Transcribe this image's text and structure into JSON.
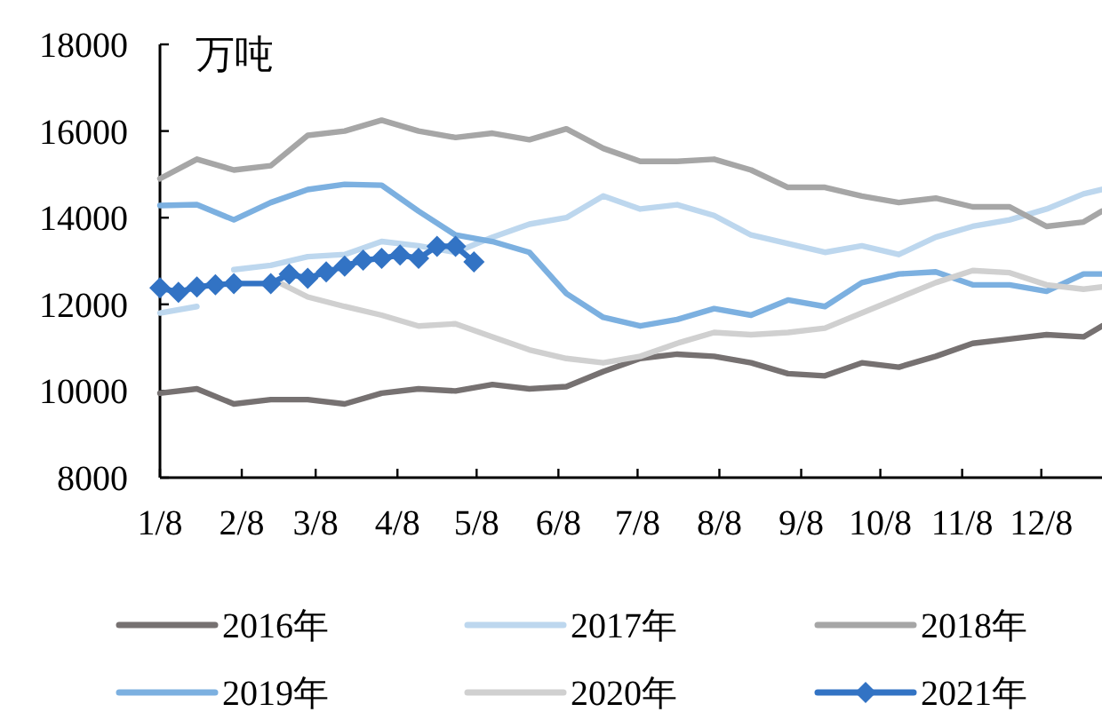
{
  "chart_data": {
    "type": "line",
    "ylabel": "万吨",
    "x": [
      "--01-08",
      "--01-22",
      "--02-05",
      "--02-19",
      "--03-05",
      "--03-19",
      "--04-02",
      "--04-16",
      "--04-30",
      "--05-14",
      "--05-28",
      "--06-11",
      "--06-25",
      "--07-09",
      "--07-23",
      "--08-06",
      "--08-20",
      "--09-03",
      "--09-17",
      "--10-01",
      "--10-15",
      "--10-29",
      "--11-12",
      "--11-26",
      "--12-10",
      "--12-24",
      "--12-31"
    ],
    "xlim": [
      "--01-08",
      "--12-31"
    ],
    "xticks": [
      {
        "value": "--01-08",
        "label": "1/8"
      },
      {
        "value": "--02-08",
        "label": "2/8"
      },
      {
        "value": "--03-08",
        "label": "3/8"
      },
      {
        "value": "--04-08",
        "label": "4/8"
      },
      {
        "value": "--05-08",
        "label": "5/8"
      },
      {
        "value": "--06-08",
        "label": "6/8"
      },
      {
        "value": "--07-08",
        "label": "7/8"
      },
      {
        "value": "--08-08",
        "label": "8/8"
      },
      {
        "value": "--09-08",
        "label": "9/8"
      },
      {
        "value": "--10-08",
        "label": "10/8"
      },
      {
        "value": "--11-08",
        "label": "11/8"
      },
      {
        "value": "--12-08",
        "label": "12/8"
      }
    ],
    "ylim": [
      8000,
      18000
    ],
    "yticks": [
      8000,
      10000,
      12000,
      14000,
      16000,
      18000
    ],
    "legend": "bottom",
    "series": [
      {
        "name": "2016年",
        "color": "#767171",
        "marker": "none",
        "values": [
          9950,
          10050,
          9700,
          9800,
          9800,
          9700,
          9950,
          10050,
          10000,
          10150,
          10050,
          10100,
          10450,
          10750,
          10850,
          10800,
          10650,
          10400,
          10350,
          10650,
          10550,
          10800,
          11100,
          11200,
          11300,
          11250,
          11500
        ]
      },
      {
        "name": "2017年",
        "color": "#bdd7ee",
        "marker": "none",
        "x": [
          "--01-08",
          "--01-22",
          "--01-29",
          "--02-05",
          "--02-19",
          "--03-05",
          "--03-19",
          "--04-02",
          "--04-16",
          "--04-30",
          "--05-14",
          "--05-28",
          "--06-11",
          "--06-25",
          "--07-09",
          "--07-23",
          "--08-06",
          "--08-20",
          "--09-03",
          "--09-17",
          "--10-01",
          "--10-15",
          "--10-29",
          "--11-12",
          "--11-26",
          "--12-10",
          "--12-24",
          "--12-31"
        ],
        "values": [
          11800,
          11950,
          null,
          12800,
          12900,
          13100,
          13150,
          13450,
          13350,
          13200,
          13550,
          13850,
          14000,
          14500,
          14200,
          14300,
          14050,
          13600,
          13400,
          13200,
          13350,
          13150,
          13550,
          13800,
          13950,
          14200,
          14550,
          14650
        ]
      },
      {
        "name": "2018年",
        "color": "#a6a6a6",
        "marker": "none",
        "values": [
          14900,
          15350,
          15100,
          15200,
          15900,
          16000,
          16250,
          16000,
          15850,
          15950,
          15800,
          16050,
          15600,
          15300,
          15300,
          15350,
          15100,
          14700,
          14700,
          14500,
          14350,
          14450,
          14250,
          14250,
          13800,
          13900,
          14150
        ]
      },
      {
        "name": "2019年",
        "color": "#7cb0e0",
        "marker": "none",
        "values": [
          14280,
          14300,
          13950,
          14350,
          14650,
          14770,
          14750,
          14150,
          13600,
          13450,
          13200,
          12250,
          11700,
          11500,
          11650,
          11900,
          11750,
          12100,
          11950,
          12500,
          12700,
          12750,
          12450,
          12450,
          12300,
          12700,
          12700
        ]
      },
      {
        "name": "2020年",
        "color": "#d0d0d0",
        "marker": "none",
        "values": [
          null,
          null,
          null,
          12600,
          12170,
          11950,
          11750,
          11500,
          11550,
          11250,
          10950,
          10750,
          10650,
          10800,
          11100,
          11350,
          11300,
          11350,
          11450,
          11800,
          12150,
          12500,
          12780,
          12730,
          12450,
          12350,
          12400
        ]
      },
      {
        "name": "2021年",
        "color": "#3273c4",
        "marker": "diamond",
        "x": [
          "--01-08",
          "--01-15",
          "--01-22",
          "--01-29",
          "--02-05",
          "--02-19",
          "--02-26",
          "--03-05",
          "--03-12",
          "--03-19",
          "--03-26",
          "--04-02",
          "--04-09",
          "--04-16",
          "--04-23",
          "--04-30",
          "--05-07"
        ],
        "values": [
          12380,
          12280,
          12400,
          12450,
          12480,
          12480,
          12700,
          12600,
          12750,
          12880,
          13020,
          13060,
          13140,
          13060,
          13340,
          13340,
          12980
        ]
      }
    ]
  }
}
